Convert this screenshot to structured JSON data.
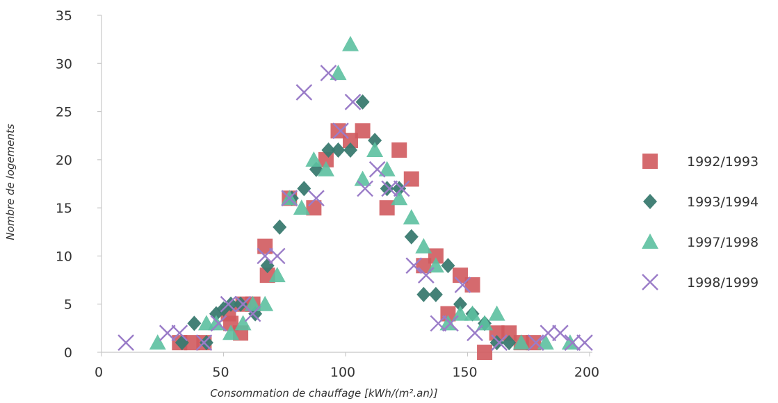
{
  "chart_data": {
    "type": "scatter",
    "xlabel": "Consommation de chauffage [kWh/(m².an)]",
    "ylabel": "Nombre de logements",
    "xlim": [
      0,
      200
    ],
    "ylim": [
      0,
      35
    ],
    "xticks": [
      "0",
      "50",
      "100",
      "150",
      "200"
    ],
    "yticks": [
      "0",
      "5",
      "10",
      "15",
      "20",
      "25",
      "30",
      "35"
    ],
    "grid": false,
    "legend_position": "right",
    "series": [
      {
        "name": "1992/1993",
        "marker": "square",
        "color": "#d05a5e",
        "points": [
          [
            32,
            1
          ],
          [
            37,
            1
          ],
          [
            42,
            1
          ],
          [
            52,
            4
          ],
          [
            53,
            3
          ],
          [
            57,
            2
          ],
          [
            58,
            5
          ],
          [
            62,
            5
          ],
          [
            67,
            11
          ],
          [
            68,
            8
          ],
          [
            77,
            16
          ],
          [
            87,
            15
          ],
          [
            92,
            20
          ],
          [
            97,
            23
          ],
          [
            102,
            22
          ],
          [
            107,
            23
          ],
          [
            117,
            15
          ],
          [
            122,
            21
          ],
          [
            127,
            18
          ],
          [
            132,
            9
          ],
          [
            137,
            10
          ],
          [
            142,
            4
          ],
          [
            147,
            8
          ],
          [
            152,
            7
          ],
          [
            157,
            0
          ],
          [
            162,
            2
          ],
          [
            167,
            2
          ],
          [
            172,
            1
          ],
          [
            177,
            1
          ]
        ]
      },
      {
        "name": "1993/1994",
        "marker": "diamond",
        "color": "#3a7a70",
        "points": [
          [
            33,
            1
          ],
          [
            38,
            3
          ],
          [
            43,
            1
          ],
          [
            47,
            4
          ],
          [
            50,
            4.5
          ],
          [
            53,
            5
          ],
          [
            57,
            5
          ],
          [
            63,
            4
          ],
          [
            68,
            9
          ],
          [
            73,
            13
          ],
          [
            78,
            16
          ],
          [
            83,
            17
          ],
          [
            88,
            19
          ],
          [
            93,
            21
          ],
          [
            97,
            21
          ],
          [
            102,
            21
          ],
          [
            107,
            26
          ],
          [
            112,
            22
          ],
          [
            117,
            17
          ],
          [
            122,
            17
          ],
          [
            127,
            12
          ],
          [
            132,
            6
          ],
          [
            137,
            6
          ],
          [
            142,
            9
          ],
          [
            147,
            5
          ],
          [
            152,
            4
          ],
          [
            157,
            3
          ],
          [
            162,
            1
          ],
          [
            167,
            1
          ]
        ]
      },
      {
        "name": "1997/1998",
        "marker": "triangle",
        "color": "#5cc0a0",
        "points": [
          [
            23,
            1
          ],
          [
            43,
            3
          ],
          [
            47,
            3
          ],
          [
            53,
            2
          ],
          [
            58,
            3
          ],
          [
            62,
            5
          ],
          [
            67,
            5
          ],
          [
            72,
            8
          ],
          [
            77,
            16
          ],
          [
            82,
            15
          ],
          [
            87,
            20
          ],
          [
            92,
            19
          ],
          [
            97,
            29
          ],
          [
            102,
            32
          ],
          [
            107,
            18
          ],
          [
            112,
            21
          ],
          [
            117,
            19
          ],
          [
            122,
            16
          ],
          [
            127,
            14
          ],
          [
            132,
            11
          ],
          [
            137,
            9
          ],
          [
            142,
            3
          ],
          [
            147,
            4
          ],
          [
            152,
            4
          ],
          [
            157,
            3
          ],
          [
            162,
            4
          ],
          [
            172,
            1
          ],
          [
            182,
            1
          ],
          [
            192,
            1
          ]
        ]
      },
      {
        "name": "1998/1999",
        "marker": "x",
        "color": "#9a7cc8",
        "points": [
          [
            10,
            1
          ],
          [
            27,
            2
          ],
          [
            32,
            2
          ],
          [
            42,
            1
          ],
          [
            48,
            3
          ],
          [
            52,
            5
          ],
          [
            58,
            5
          ],
          [
            62,
            4
          ],
          [
            67,
            10
          ],
          [
            72,
            10
          ],
          [
            77,
            16
          ],
          [
            83,
            27
          ],
          [
            88,
            16
          ],
          [
            93,
            29
          ],
          [
            98,
            23
          ],
          [
            103,
            26
          ],
          [
            108,
            17
          ],
          [
            113,
            19
          ],
          [
            118,
            17
          ],
          [
            123,
            17
          ],
          [
            128,
            9
          ],
          [
            133,
            8
          ],
          [
            138,
            3
          ],
          [
            143,
            3
          ],
          [
            148,
            7
          ],
          [
            153,
            2
          ],
          [
            163,
            1
          ],
          [
            178,
            1
          ],
          [
            183,
            2
          ],
          [
            188,
            2
          ],
          [
            193,
            1
          ],
          [
            198,
            1
          ]
        ]
      }
    ]
  }
}
